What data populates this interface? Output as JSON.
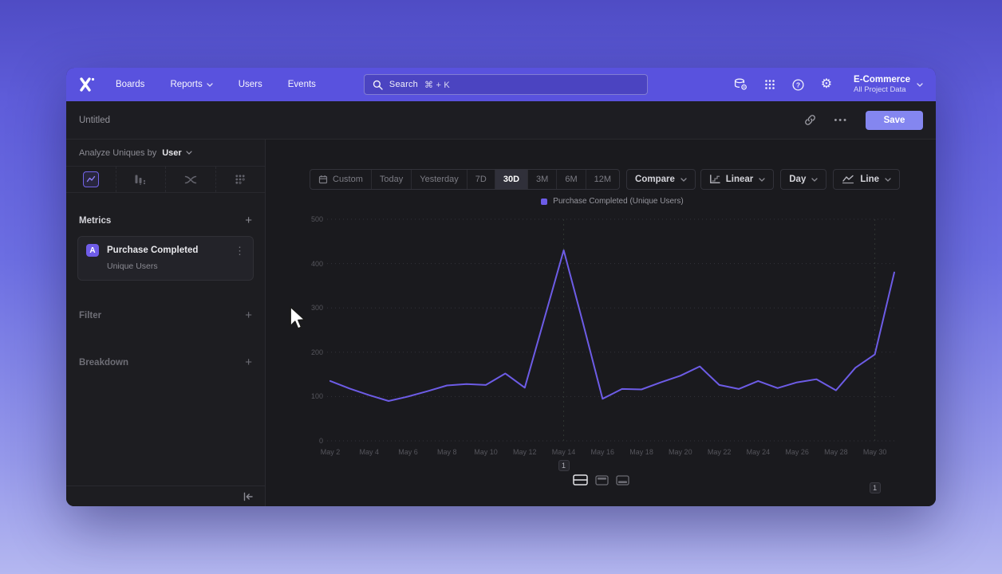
{
  "nav": {
    "logo": "X",
    "menu": [
      {
        "label": "Boards",
        "chevron": false
      },
      {
        "label": "Reports",
        "chevron": true
      },
      {
        "label": "Users",
        "chevron": false
      },
      {
        "label": "Events",
        "chevron": false
      }
    ],
    "search": {
      "placeholder": "Search",
      "shortcut": "⌘ + K"
    },
    "project": {
      "name": "E-Commerce",
      "scope": "All Project Data"
    }
  },
  "header": {
    "title": "Untitled",
    "ellipsis": "•••",
    "save_label": "Save"
  },
  "sidebar": {
    "analyze": {
      "prefix": "Analyze Uniques by",
      "value": "User"
    },
    "tabs": [
      {
        "name": "insights",
        "selected": true
      },
      {
        "name": "funnels",
        "selected": false
      },
      {
        "name": "flows",
        "selected": false
      },
      {
        "name": "retention",
        "selected": false
      }
    ],
    "metrics": {
      "title": "Metrics",
      "add": "+",
      "items": [
        {
          "badge": "A",
          "name": "Purchase Completed",
          "measure": "Unique Users",
          "menu": "⋮"
        }
      ]
    },
    "filter": {
      "label": "Filter",
      "add": "+"
    },
    "breakdown": {
      "label": "Breakdown",
      "add": "+"
    }
  },
  "toolbar": {
    "ranges": [
      "Custom",
      "Today",
      "Yesterday",
      "7D",
      "30D",
      "3M",
      "6M",
      "12M"
    ],
    "selected": "30D",
    "compare": "Compare",
    "scale": "Linear",
    "interval": "Day",
    "chart_type": "Line"
  },
  "chart_data": {
    "type": "line",
    "title": "",
    "xlabel": "",
    "ylabel": "",
    "ylim": [
      0,
      500
    ],
    "yticks": [
      0,
      100,
      200,
      300,
      400,
      500
    ],
    "grid": true,
    "legend_position": "top-center",
    "legend": [
      {
        "label": "Purchase Completed (Unique Users)",
        "color": "#6c5ce7"
      }
    ],
    "x": [
      "May 2",
      "May 3",
      "May 4",
      "May 5",
      "May 6",
      "May 7",
      "May 8",
      "May 9",
      "May 10",
      "May 11",
      "May 12",
      "May 13",
      "May 14",
      "May 15",
      "May 16",
      "May 17",
      "May 18",
      "May 19",
      "May 20",
      "May 21",
      "May 22",
      "May 23",
      "May 24",
      "May 25",
      "May 26",
      "May 27",
      "May 28",
      "May 29",
      "May 30",
      "May 31"
    ],
    "x_ticklabels": [
      "May 2",
      "May 4",
      "May 6",
      "May 8",
      "May 10",
      "May 12",
      "May 14",
      "May 16",
      "May 18",
      "May 20",
      "May 22",
      "May 24",
      "May 26",
      "May 28",
      "May 30"
    ],
    "series": [
      {
        "name": "Purchase Completed (Unique Users)",
        "color": "#6d5ce6",
        "values": [
          135,
          118,
          103,
          90,
          100,
          112,
          125,
          128,
          126,
          152,
          120,
          275,
          430,
          265,
          95,
          117,
          116,
          132,
          147,
          168,
          126,
          117,
          135,
          119,
          132,
          139,
          114,
          165,
          195,
          380
        ]
      }
    ],
    "annotations": [
      {
        "label": "1",
        "x": "May 14"
      },
      {
        "label": "1",
        "x": "May 30"
      }
    ]
  },
  "colors": {
    "accent": "#6d5ce6",
    "nav": "#5952de",
    "save": "#8486f0"
  }
}
